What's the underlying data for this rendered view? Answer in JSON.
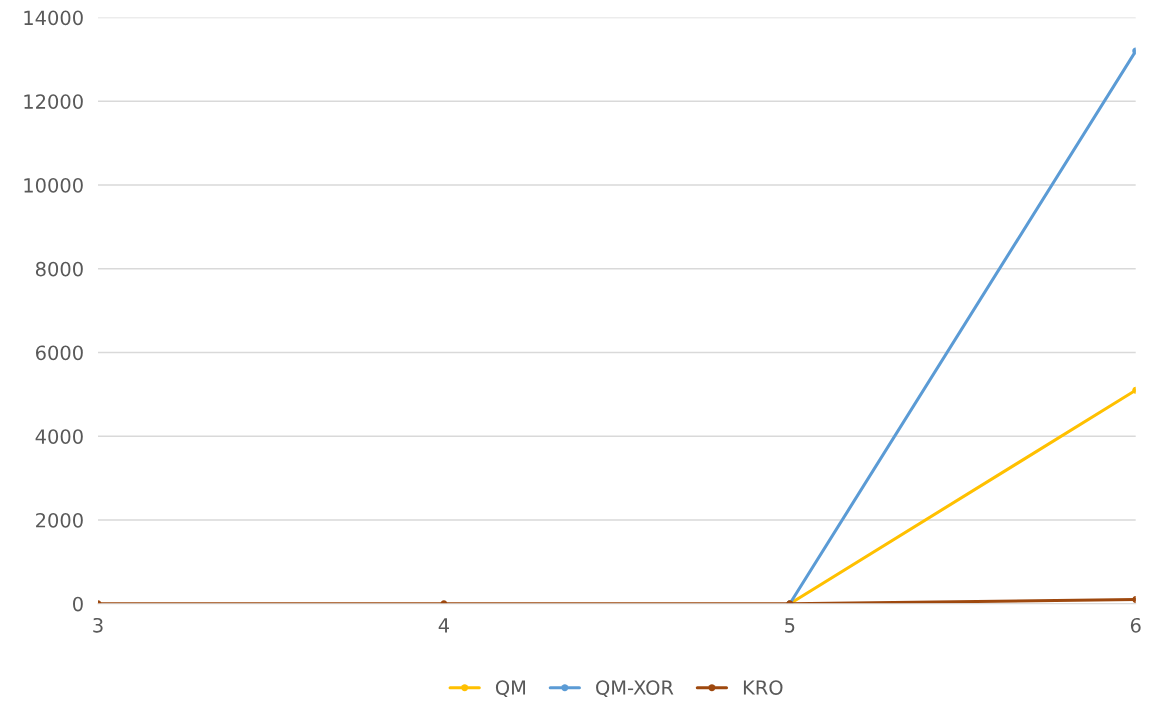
{
  "chart_data": {
    "type": "line",
    "categories": [
      "3",
      "4",
      "5",
      "6"
    ],
    "series": [
      {
        "name": "QM",
        "color": "#ffc000",
        "values": [
          null,
          null,
          0,
          5100
        ]
      },
      {
        "name": "QM-XOR",
        "color": "#5b9bd5",
        "values": [
          null,
          null,
          0,
          13200
        ]
      },
      {
        "name": "KRO",
        "color": "#9e480e",
        "values": [
          0,
          0,
          0,
          100
        ]
      }
    ],
    "ylim": [
      0,
      14000
    ],
    "yticks": [
      0,
      2000,
      4000,
      6000,
      8000,
      10000,
      12000,
      14000
    ],
    "grid": "y",
    "legend": "bottom",
    "marker": "circle",
    "line_style": "solid"
  }
}
